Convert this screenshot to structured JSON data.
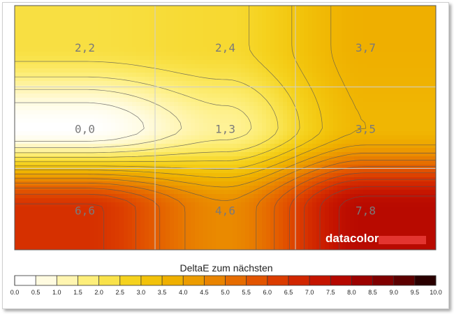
{
  "chart_data": {
    "type": "heatmap",
    "title": "",
    "legend_title": "DeltaE zum nächsten",
    "brand": "datacolor",
    "brand_color": "#e3342f",
    "rows": 3,
    "cols": 3,
    "values": [
      [
        2.2,
        2.4,
        3.7
      ],
      [
        0.0,
        1.3,
        3.5
      ],
      [
        6.6,
        4.6,
        7.8
      ]
    ],
    "labels": [
      [
        "2,2",
        "2,4",
        "3,7"
      ],
      [
        "0,0",
        "1,3",
        "3,5"
      ],
      [
        "6,6",
        "4,6",
        "7,8"
      ]
    ],
    "scale": {
      "min": 0,
      "max": 10,
      "ticks": [
        "0.0",
        "0.5",
        "1.0",
        "1.5",
        "2.0",
        "2.5",
        "3.0",
        "3.5",
        "4.0",
        "4.5",
        "5.0",
        "5.5",
        "6.0",
        "6.5",
        "7.0",
        "7.5",
        "8.0",
        "8.5",
        "9.0",
        "9.5",
        "10.0"
      ],
      "colors": [
        "#ffffff",
        "#fffbe0",
        "#fff5b0",
        "#fdee7a",
        "#f9e24a",
        "#f5d21e",
        "#f2c20a",
        "#efb000",
        "#ec9c00",
        "#e98400",
        "#e66c00",
        "#e25400",
        "#db3c00",
        "#d12600",
        "#c51400",
        "#b50800",
        "#9c0200",
        "#800000",
        "#5c0000",
        "#2a0000"
      ]
    },
    "contour_levels": [
      0.5,
      1.0,
      1.5,
      2.0,
      2.5,
      3.0,
      3.5,
      4.0,
      4.5,
      5.0,
      5.5,
      6.0,
      6.5,
      7.0,
      7.5
    ],
    "grid": true
  }
}
